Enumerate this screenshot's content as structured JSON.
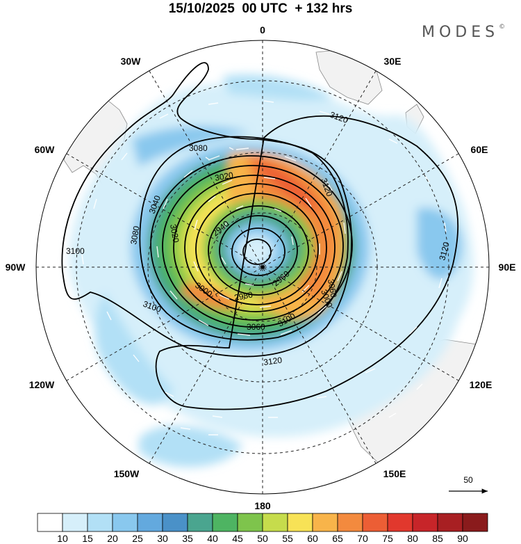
{
  "header": {
    "title": "15/10/2025  00 UTC  + 132 hrs",
    "brand": "MODES",
    "brand_mark": "©"
  },
  "map": {
    "projection": "south-polar-stereographic",
    "longitude_labels": [
      "0",
      "30E",
      "60E",
      "90E",
      "120E",
      "150E",
      "180",
      "150W",
      "120W",
      "90W",
      "60W",
      "30W"
    ],
    "contour_labels": [
      "3120",
      "3120",
      "3120",
      "3120",
      "3100",
      "3100",
      "3100",
      "3080",
      "3080",
      "3060",
      "3060",
      "3040",
      "3020",
      "3020",
      "3000",
      "2980",
      "2960",
      "3000",
      "2940"
    ],
    "vector_reference_label": "50",
    "land_color": "#f2f2f2",
    "contour_color": "#000000"
  },
  "colorbar": {
    "ticks": [
      "10",
      "15",
      "20",
      "25",
      "30",
      "35",
      "40",
      "45",
      "50",
      "55",
      "60",
      "65",
      "70",
      "75",
      "80",
      "85",
      "90"
    ],
    "colors": [
      "#ffffff",
      "#d6effa",
      "#b2e0f6",
      "#89c8ee",
      "#63a9de",
      "#4a91c8",
      "#4aa58f",
      "#4eb462",
      "#7ec44c",
      "#c6dc4c",
      "#f7e256",
      "#f8b44a",
      "#f38a3e",
      "#ec5e35",
      "#e1382d",
      "#c72529",
      "#a81f22",
      "#8a1b1c"
    ]
  }
}
